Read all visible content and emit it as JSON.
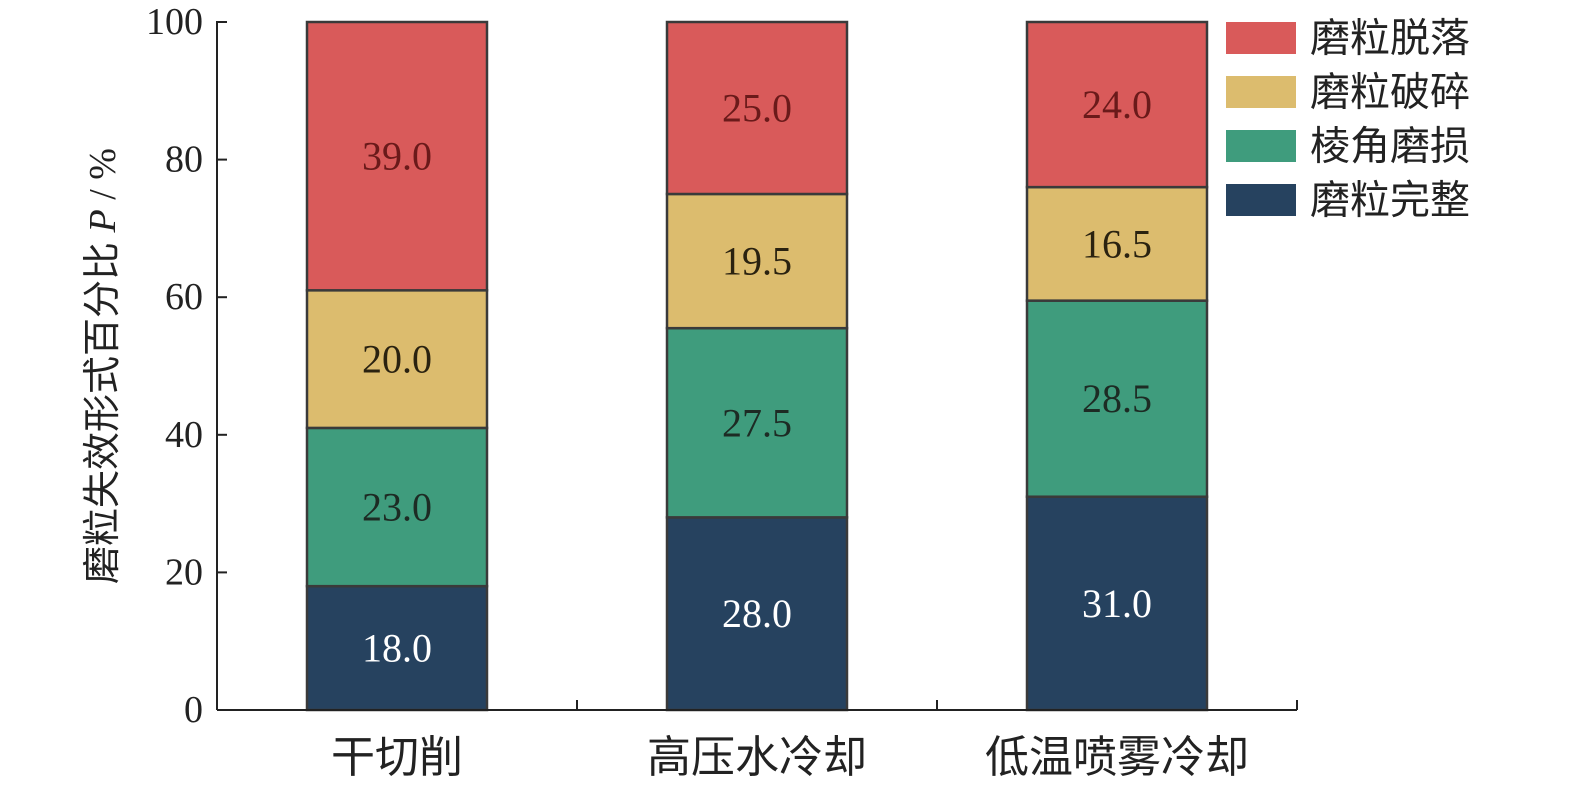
{
  "chart_data": {
    "type": "bar",
    "stacked": true,
    "categories": [
      "干切削",
      "高压水冷却",
      "低温喷雾冷却"
    ],
    "series": [
      {
        "name": "磨粒完整",
        "color": "#26425f",
        "label_color": "#ffffff",
        "values": [
          18.0,
          28.0,
          31.0
        ]
      },
      {
        "name": "棱角磨损",
        "color": "#3f9c7d",
        "label_color": "#1d2b24",
        "values": [
          23.0,
          27.5,
          28.5
        ]
      },
      {
        "name": "磨粒破碎",
        "color": "#dcbc6e",
        "label_color": "#2a2210",
        "values": [
          20.0,
          19.5,
          16.5
        ]
      },
      {
        "name": "磨粒脱落",
        "color": "#d95a5a",
        "label_color": "#6a1a1a",
        "values": [
          39.0,
          25.0,
          24.0
        ]
      }
    ],
    "legend_order": [
      3,
      2,
      1,
      0
    ],
    "legend_position": "top-right",
    "ylabel_prefix": "磨粒失效形式百分比",
    "ylabel_var": "P",
    "ylabel_unit": " / %",
    "ylim": [
      0,
      100
    ],
    "yticks": [
      0,
      20,
      40,
      60,
      80,
      100
    ],
    "grid": false,
    "data_labels": true
  }
}
